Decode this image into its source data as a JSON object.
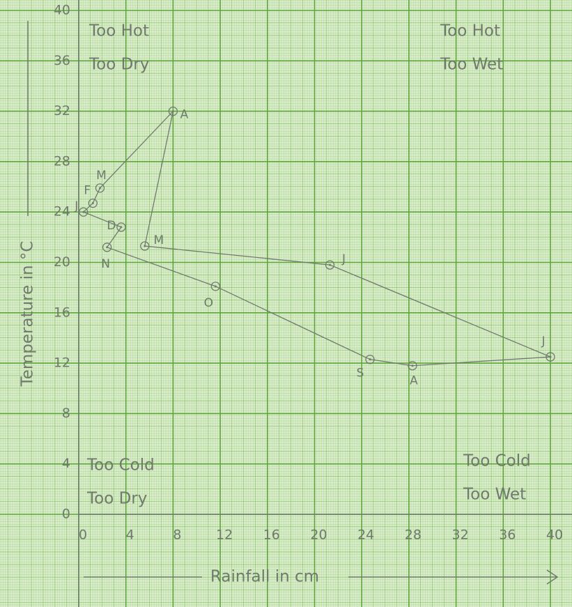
{
  "chart_data": {
    "type": "line",
    "x_label": "Rainfall in cm",
    "y_label": "Temperature in °C",
    "x": [
      0.4,
      1.2,
      1.8,
      8.0,
      5.6,
      21.3,
      40,
      28.3,
      24.7,
      11.6,
      2.4,
      3.6
    ],
    "values": [
      24,
      24.7,
      25.9,
      32,
      21.3,
      19.8,
      12.5,
      11.8,
      12.3,
      18.1,
      21.2,
      22.8
    ],
    "point_labels": [
      "J",
      "F",
      "M",
      "A",
      "M",
      "J",
      "J",
      "A",
      "S",
      "O",
      "N",
      "D"
    ],
    "closed": true,
    "color": "#707b6d",
    "xlim": [
      0,
      40
    ],
    "xticks": [
      0,
      4,
      8,
      12,
      16,
      20,
      24,
      28,
      32,
      36,
      40
    ],
    "ylim": [
      0,
      40
    ],
    "yticks": [
      0,
      4,
      8,
      12,
      16,
      20,
      24,
      28,
      32,
      36,
      40
    ],
    "grid": true,
    "annotations": [
      [
        "Too Hot",
        "Too Dry"
      ],
      [
        "Too Hot",
        "Too Wet"
      ],
      [
        "Too Cold",
        "Too Dry"
      ],
      [
        "Too Cold",
        "Too Wet"
      ]
    ]
  }
}
